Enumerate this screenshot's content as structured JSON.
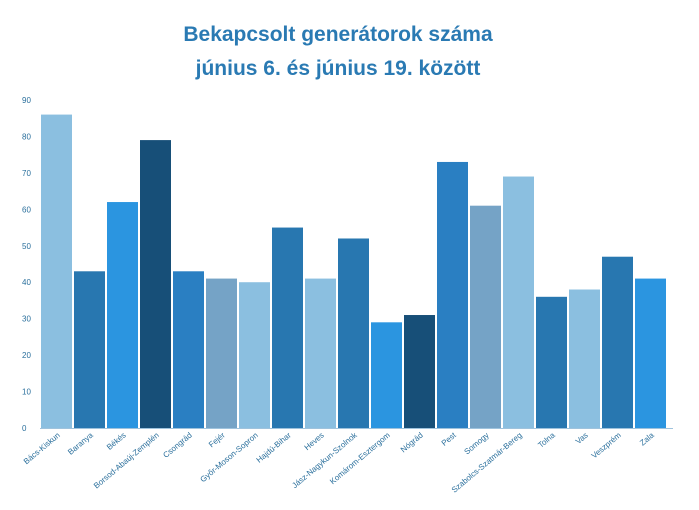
{
  "chart_data": {
    "type": "bar",
    "title_line1": "Bekapcsolt generátorok száma",
    "title_line2": "június 6. és június 19. között",
    "xlabel": "",
    "ylabel": "",
    "ylim": [
      0,
      90
    ],
    "yticks": [
      "0",
      "10",
      "20",
      "30",
      "40",
      "50",
      "60",
      "70",
      "80",
      "90"
    ],
    "grid": false,
    "legend": "none",
    "categories": [
      "Bács-Kiskun",
      "Baranya",
      "Békés",
      "Borsod-Abaúj-Zemplén",
      "Csongrád",
      "Fejér",
      "Győr-Moson-Sopron",
      "Hajdú-Bihar",
      "Heves",
      "Jász-Nagykun-Szolnok",
      "Komárom-Esztergom",
      "Nógrád",
      "Pest",
      "Somogy",
      "Szabolcs-Szatmár-Bereg",
      "Tolna",
      "Vas",
      "Veszprém",
      "Zala"
    ],
    "values": [
      86,
      43,
      62,
      79,
      43,
      41,
      40,
      55,
      41,
      52,
      29,
      31,
      73,
      61,
      69,
      36,
      38,
      47,
      41
    ],
    "colors": [
      "#8bbfe0",
      "#2877b0",
      "#2b95e0",
      "#174f78",
      "#2a7fc2",
      "#75a3c6",
      "#8bbfe0",
      "#2877b0",
      "#8bbfe0",
      "#2877b0",
      "#2b95e0",
      "#174f78",
      "#2a7fc2",
      "#75a3c6",
      "#8bbfe0",
      "#2877b0",
      "#8bbfe0",
      "#2877b0",
      "#2b95e0"
    ],
    "title_color": "#2a7ab3",
    "label_color": "#2a6f9c"
  }
}
